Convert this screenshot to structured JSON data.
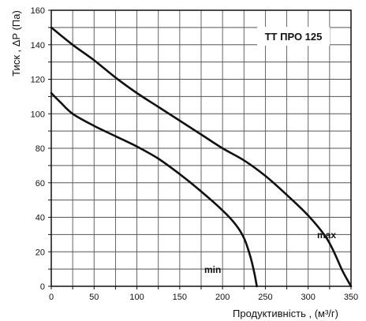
{
  "chart_data": {
    "type": "line",
    "title": "ТТ ПРО 125",
    "xlabel": "Продуктивність  , (м³/г)",
    "ylabel": "Тиск , ΔP (Па)",
    "xlim": [
      0,
      350
    ],
    "ylim": [
      0,
      160
    ],
    "x_ticks": [
      "0",
      "50",
      "100",
      "150",
      "200",
      "250",
      "300",
      "350"
    ],
    "y_ticks": [
      "0",
      "20",
      "40",
      "60",
      "80",
      "100",
      "120",
      "140",
      "160"
    ],
    "grid": true,
    "series": [
      {
        "name": "max",
        "x": [
          0,
          25,
          50,
          75,
          100,
          125,
          150,
          175,
          200,
          225,
          250,
          275,
          300,
          320,
          330,
          340,
          350
        ],
        "y": [
          150,
          140,
          131,
          121,
          112,
          104,
          96,
          88,
          80,
          73,
          64,
          53,
          41,
          29,
          20,
          9,
          0
        ]
      },
      {
        "name": "min",
        "x": [
          0,
          10,
          25,
          50,
          75,
          100,
          125,
          150,
          175,
          200,
          215,
          225,
          232,
          237,
          240
        ],
        "y": [
          112,
          107,
          100,
          93,
          87,
          81,
          74,
          65,
          55,
          44,
          36,
          28,
          18,
          8,
          0
        ]
      }
    ]
  }
}
